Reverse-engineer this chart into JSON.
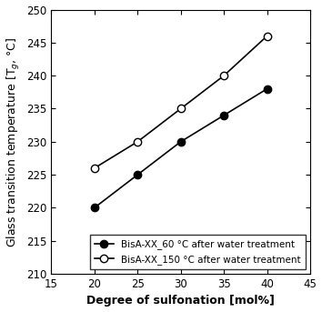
{
  "x": [
    20,
    25,
    30,
    35,
    40
  ],
  "y_60": [
    220,
    225,
    230,
    234,
    238
  ],
  "y_150": [
    226,
    230,
    235,
    240,
    246
  ],
  "xlabel": "Degree of sulfonation [mol%]",
  "ylabel": "Glass transition temperature [T$_g$, °C]",
  "xlim": [
    15,
    45
  ],
  "ylim": [
    210,
    250
  ],
  "xticks": [
    15,
    20,
    25,
    30,
    35,
    40,
    45
  ],
  "yticks": [
    210,
    215,
    220,
    225,
    230,
    235,
    240,
    245,
    250
  ],
  "legend_60": "BisA-XX_60 °C after water treatment",
  "legend_150": "BisA-XX_150 °C after water treatment",
  "color": "#000000",
  "markersize": 6,
  "linewidth": 1.2,
  "bg_color": "#ffffff"
}
